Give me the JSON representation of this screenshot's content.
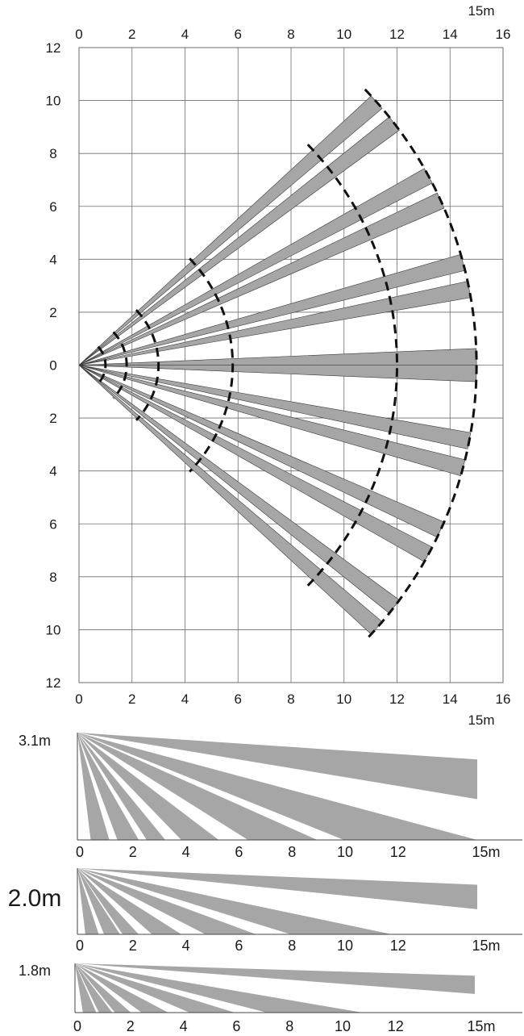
{
  "top_view": {
    "range_label": "15m",
    "x_ticks": [
      "0",
      "2",
      "4",
      "6",
      "8",
      "10",
      "12",
      "14",
      "16"
    ],
    "y_ticks": [
      "12",
      "10",
      "8",
      "6",
      "4",
      "2",
      "0",
      "2",
      "4",
      "6",
      "8",
      "10",
      "12"
    ],
    "x_range": [
      0,
      16
    ],
    "y_range": [
      -12,
      12
    ],
    "beams": [
      {
        "angle": 41.5,
        "length": 15.0
      },
      {
        "angle": 37.5,
        "length": 15.0
      },
      {
        "angle": 28.5,
        "length": 15.0
      },
      {
        "angle": 24.5,
        "length": 15.0
      },
      {
        "angle": 15.0,
        "length": 15.0
      },
      {
        "angle": 11.0,
        "length": 15.0
      },
      {
        "angle": 1.2,
        "length": 15.0
      },
      {
        "angle": -1.2,
        "length": 15.0
      },
      {
        "angle": -11.0,
        "length": 15.0
      },
      {
        "angle": -15.0,
        "length": 15.0
      },
      {
        "angle": -24.5,
        "length": 15.0
      },
      {
        "angle": -28.5,
        "length": 15.0
      },
      {
        "angle": -37.5,
        "length": 15.0
      },
      {
        "angle": -41.5,
        "length": 15.0
      }
    ],
    "zone_radii": [
      1.0,
      1.8,
      3.0,
      5.8,
      12.0,
      15.0
    ]
  },
  "side_views": [
    {
      "height_label": "3.1m",
      "range_label": "15m",
      "x_ticks": [
        "0",
        "2",
        "4",
        "6",
        "8",
        "10",
        "12"
      ],
      "rays": [
        {
          "near": 0.5,
          "far": 1.2
        },
        {
          "near": 1.5,
          "far": 2.3
        },
        {
          "near": 2.6,
          "far": 3.3
        },
        {
          "near": 3.9,
          "far": 5.3
        },
        {
          "near": 6.4,
          "far": 9.0
        },
        {
          "near": 10.0,
          "far": 15.0
        },
        {
          "end_x": 15.0,
          "top": 2.1,
          "bottom": 1.0
        }
      ]
    },
    {
      "height_label": "2.0m",
      "range_label": "15m",
      "x_ticks": [
        "0",
        "2",
        "4",
        "6",
        "8",
        "10",
        "12"
      ],
      "rays": [
        {
          "near": 0.3,
          "far": 0.8
        },
        {
          "near": 1.0,
          "far": 1.6
        },
        {
          "near": 1.7,
          "far": 2.3
        },
        {
          "near": 2.8,
          "far": 3.9
        },
        {
          "near": 4.8,
          "far": 6.7
        },
        {
          "near": 8.0,
          "far": 11.8
        },
        {
          "end_x": 15.0,
          "top": 1.3,
          "bottom": 0.55
        }
      ]
    },
    {
      "height_label": "1.8m",
      "range_label": "15m",
      "x_ticks": [
        "0",
        "2",
        "4",
        "6",
        "8",
        "10",
        "12"
      ],
      "rays": [
        {
          "near": 0.3,
          "far": 0.8
        },
        {
          "near": 0.9,
          "far": 1.4
        },
        {
          "near": 1.5,
          "far": 2.1
        },
        {
          "near": 2.5,
          "far": 3.5
        },
        {
          "near": 4.3,
          "far": 6.0
        },
        {
          "near": 7.2,
          "far": 10.8
        },
        {
          "end_x": 15.0,
          "top": 1.2,
          "bottom": 0.5
        }
      ]
    }
  ],
  "colors": {
    "beam": "#a6a6a6",
    "grid": "#6e6e6e",
    "ink": "#1a1a1a"
  }
}
